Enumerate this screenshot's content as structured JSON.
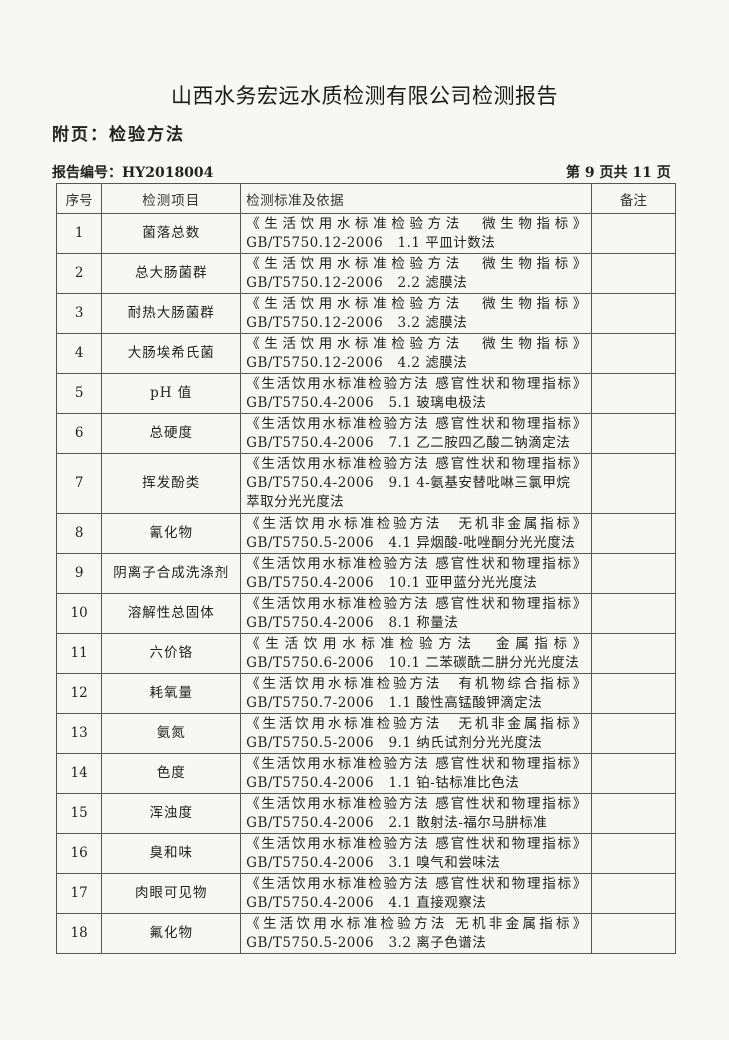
{
  "header": {
    "title": "山西水务宏远水质检测有限公司检测报告",
    "subtitle": "附页：检验方法",
    "report_no": "报告编号：HY2018004",
    "page_no": "第 9 页共 11 页"
  },
  "table": {
    "columns": [
      "序号",
      "检测项目",
      "检测标准及依据",
      "备注"
    ],
    "rows": [
      {
        "no": "1",
        "item": "菌落总数",
        "standard": "《生活饮用水标准检验方法　微生物指标》",
        "method": "GB/T5750.12-2006   1.1 平皿计数法",
        "note": ""
      },
      {
        "no": "2",
        "item": "总大肠菌群",
        "standard": "《生活饮用水标准检验方法　微生物指标》",
        "method": "GB/T5750.12-2006   2.2 滤膜法",
        "note": ""
      },
      {
        "no": "3",
        "item": "耐热大肠菌群",
        "standard": "《生活饮用水标准检验方法　微生物指标》",
        "method": "GB/T5750.12-2006   3.2 滤膜法",
        "note": ""
      },
      {
        "no": "4",
        "item": "大肠埃希氏菌",
        "standard": "《生活饮用水标准检验方法　微生物指标》",
        "method": "GB/T5750.12-2006   4.2 滤膜法",
        "note": ""
      },
      {
        "no": "5",
        "item": "pH 值",
        "standard": "《生活饮用水标准检验方法 感官性状和物理指标》",
        "method": "GB/T5750.4-2006   5.1 玻璃电极法",
        "note": ""
      },
      {
        "no": "6",
        "item": "总硬度",
        "standard": "《生活饮用水标准检验方法 感官性状和物理指标》",
        "method": "GB/T5750.4-2006   7.1 乙二胺四乙酸二钠滴定法",
        "note": ""
      },
      {
        "no": "7",
        "item": "挥发酚类",
        "standard": "《生活饮用水标准检验方法 感官性状和物理指标》",
        "method": "GB/T5750.4-2006   9.1 4-氨基安替吡啉三氯甲烷",
        "method2": "萃取分光光度法",
        "note": ""
      },
      {
        "no": "8",
        "item": "氰化物",
        "standard": "《生活饮用水标准检验方法　无机非金属指标》",
        "method": "GB/T5750.5-2006   4.1 异烟酸-吡唑酮分光光度法",
        "note": ""
      },
      {
        "no": "9",
        "item": "阴离子合成洗涤剂",
        "standard": "《生活饮用水标准检验方法 感官性状和物理指标》",
        "method": "GB/T5750.4-2006   10.1 亚甲蓝分光光度法",
        "note": ""
      },
      {
        "no": "10",
        "item": "溶解性总固体",
        "standard": "《生活饮用水标准检验方法 感官性状和物理指标》",
        "method": "GB/T5750.4-2006   8.1 称量法",
        "note": ""
      },
      {
        "no": "11",
        "item": "六价铬",
        "standard": "《生活饮用水标准检验方法　金属指标》",
        "method": "GB/T5750.6-2006   10.1 二苯碳酰二肼分光光度法",
        "note": ""
      },
      {
        "no": "12",
        "item": "耗氧量",
        "standard": "《生活饮用水标准检验方法　有机物综合指标》",
        "method": "GB/T5750.7-2006   1.1 酸性高锰酸钾滴定法",
        "note": ""
      },
      {
        "no": "13",
        "item": "氨氮",
        "standard": "《生活饮用水标准检验方法　无机非金属指标》",
        "method": "GB/T5750.5-2006   9.1 纳氏试剂分光光度法",
        "note": ""
      },
      {
        "no": "14",
        "item": "色度",
        "standard": "《生活饮用水标准检验方法 感官性状和物理指标》",
        "method": "GB/T5750.4-2006   1.1 铂-钴标准比色法",
        "note": ""
      },
      {
        "no": "15",
        "item": "浑浊度",
        "standard": "《生活饮用水标准检验方法 感官性状和物理指标》",
        "method": "GB/T5750.4-2006   2.1 散射法-福尔马肼标准",
        "note": ""
      },
      {
        "no": "16",
        "item": "臭和味",
        "standard": "《生活饮用水标准检验方法 感官性状和物理指标》",
        "method": "GB/T5750.4-2006   3.1 嗅气和尝味法",
        "note": ""
      },
      {
        "no": "17",
        "item": "肉眼可见物",
        "standard": "《生活饮用水标准检验方法 感官性状和物理指标》",
        "method": "GB/T5750.4-2006   4.1 直接观察法",
        "note": ""
      },
      {
        "no": "18",
        "item": "氟化物",
        "standard": "《生活饮用水标准检验方法 无机非金属指标》",
        "method": "GB/T5750.5-2006   3.2 离子色谱法",
        "note": ""
      }
    ]
  }
}
